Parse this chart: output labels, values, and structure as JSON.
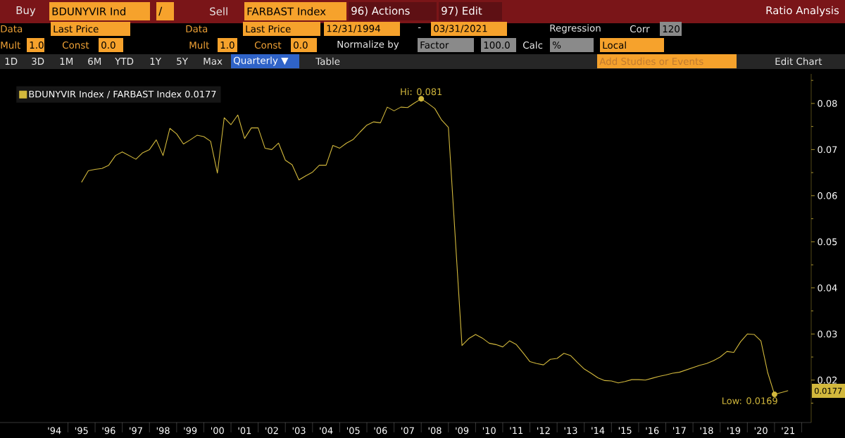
{
  "chart_data": {
    "type": "line",
    "title": "Ratio Analysis",
    "annotations": [
      "Buy",
      "BDUNYVIR Ind",
      "/",
      "Sell",
      "FARBAST Index",
      "96) Actions",
      "97) Edit",
      "Data",
      "Last Price",
      "Data",
      "Last Price",
      "12/31/1994",
      "-",
      "03/31/2021",
      "Regression",
      "Corr",
      "120",
      "Mult",
      "1.0",
      "Const",
      "0.0",
      "Mult",
      "1.0",
      "Const",
      "0.0",
      "Normalize by",
      "Factor",
      "100.0",
      "Calc",
      "%",
      "Local",
      "1D",
      "3D",
      "1M",
      "6M",
      "YTD",
      "1Y",
      "5Y",
      "Max",
      "Quarterly ▼",
      "Table",
      "Add Studies or Events",
      "Edit Chart",
      {
        "text": "Hi: 0.081",
        "x": 2007.5,
        "y": 0.081
      },
      {
        "text": "Low: 0.0169",
        "x": 2020.5,
        "y": 0.0169
      },
      "0.0177"
    ],
    "series": [
      {
        "name": "BDUNYVIR Index / FARBAST Index 0.0177",
        "color": "#d2b83c",
        "x": [
          1995,
          1995.25,
          1995.5,
          1995.75,
          1996,
          1996.25,
          1996.5,
          1996.75,
          1997,
          1997.25,
          1997.5,
          1997.75,
          1998,
          1998.25,
          1998.5,
          1998.75,
          1999,
          1999.25,
          1999.5,
          1999.75,
          2000,
          2000.25,
          2000.5,
          2000.75,
          2001,
          2001.25,
          2001.5,
          2001.75,
          2002,
          2002.25,
          2002.5,
          2002.75,
          2003,
          2003.25,
          2003.5,
          2003.75,
          2004,
          2004.25,
          2004.5,
          2004.75,
          2005,
          2005.25,
          2005.5,
          2005.75,
          2006,
          2006.25,
          2006.5,
          2006.75,
          2007,
          2007.25,
          2007.5,
          2007.75,
          2008,
          2008.25,
          2008.5,
          2009,
          2009.25,
          2009.5,
          2009.75,
          2010,
          2010.25,
          2010.5,
          2010.75,
          2011,
          2011.25,
          2011.5,
          2011.75,
          2012,
          2012.25,
          2012.5,
          2012.75,
          2013,
          2013.25,
          2013.5,
          2013.75,
          2014,
          2014.25,
          2014.5,
          2014.75,
          2015,
          2015.25,
          2015.5,
          2015.75,
          2016,
          2016.25,
          2016.5,
          2016.75,
          2017,
          2017.25,
          2017.5,
          2017.75,
          2018,
          2018.25,
          2018.5,
          2018.75,
          2019,
          2019.25,
          2019.5,
          2019.75,
          2020,
          2020.25,
          2020.5,
          2020.75,
          2021
        ],
        "values": [
          0.0629,
          0.0654,
          0.0657,
          0.0659,
          0.0666,
          0.0687,
          0.0695,
          0.0687,
          0.0679,
          0.0693,
          0.07,
          0.0721,
          0.0687,
          0.0746,
          0.0734,
          0.0712,
          0.0721,
          0.0731,
          0.0728,
          0.0718,
          0.0649,
          0.0769,
          0.0754,
          0.0775,
          0.0724,
          0.0747,
          0.0747,
          0.0703,
          0.07,
          0.0714,
          0.0677,
          0.0667,
          0.0634,
          0.0643,
          0.0651,
          0.0666,
          0.0666,
          0.0709,
          0.0703,
          0.0714,
          0.0722,
          0.0738,
          0.0753,
          0.076,
          0.0758,
          0.0792,
          0.0784,
          0.0792,
          0.0791,
          0.0801,
          0.081,
          0.08,
          0.0789,
          0.0764,
          0.0748,
          0.0275,
          0.029,
          0.0299,
          0.0291,
          0.028,
          0.0277,
          0.0272,
          0.0285,
          0.0277,
          0.0259,
          0.024,
          0.0236,
          0.0233,
          0.0245,
          0.0247,
          0.0258,
          0.0253,
          0.0238,
          0.0224,
          0.0215,
          0.0205,
          0.0199,
          0.0198,
          0.0194,
          0.0197,
          0.0201,
          0.0201,
          0.02,
          0.0204,
          0.0208,
          0.0211,
          0.0215,
          0.0217,
          0.0222,
          0.0227,
          0.0232,
          0.0236,
          0.0242,
          0.025,
          0.0262,
          0.026,
          0.0283,
          0.03,
          0.0299,
          0.0285,
          0.0216,
          0.0169,
          0.0173,
          0.0177
        ]
      }
    ],
    "xlim": [
      1992,
      2021.85
    ],
    "ylim": [
      0.0108,
      0.0864
    ],
    "xticks": [
      {
        "value": 1994,
        "label": "'94"
      },
      {
        "value": 1995,
        "label": "'95"
      },
      {
        "value": 1996,
        "label": "'96"
      },
      {
        "value": 1997,
        "label": "'97"
      },
      {
        "value": 1998,
        "label": "'98"
      },
      {
        "value": 1999,
        "label": "'99"
      },
      {
        "value": 2000,
        "label": "'00"
      },
      {
        "value": 2001,
        "label": "'01"
      },
      {
        "value": 2002,
        "label": "'02"
      },
      {
        "value": 2003,
        "label": "'03"
      },
      {
        "value": 2004,
        "label": "'04"
      },
      {
        "value": 2005,
        "label": "'05"
      },
      {
        "value": 2006,
        "label": "'06"
      },
      {
        "value": 2007,
        "label": "'07"
      },
      {
        "value": 2008,
        "label": "'08"
      },
      {
        "value": 2009,
        "label": "'09"
      },
      {
        "value": 2010,
        "label": "'10"
      },
      {
        "value": 2011,
        "label": "'11"
      },
      {
        "value": 2012,
        "label": "'12"
      },
      {
        "value": 2013,
        "label": "'13"
      },
      {
        "value": 2014,
        "label": "'14"
      },
      {
        "value": 2015,
        "label": "'15"
      },
      {
        "value": 2016,
        "label": "'16"
      },
      {
        "value": 2017,
        "label": "'17"
      },
      {
        "value": 2018,
        "label": "'18"
      },
      {
        "value": 2019,
        "label": "'19"
      },
      {
        "value": 2020,
        "label": "'20"
      },
      {
        "value": 2021,
        "label": "'21"
      },
      {
        "value": 1994.5,
        "label": null
      },
      {
        "value": 1995.5,
        "label": null
      },
      {
        "value": 1996.5,
        "label": null
      },
      {
        "value": 1997.5,
        "label": null
      },
      {
        "value": 1998.5,
        "label": null
      },
      {
        "value": 1999.5,
        "label": null
      },
      {
        "value": 2000.5,
        "label": null
      },
      {
        "value": 2001.5,
        "label": null
      },
      {
        "value": 2002.5,
        "label": null
      },
      {
        "value": 2003.5,
        "label": null
      },
      {
        "value": 2004.5,
        "label": null
      },
      {
        "value": 2005.5,
        "label": null
      },
      {
        "value": 2006.5,
        "label": null
      },
      {
        "value": 2007.5,
        "label": null
      },
      {
        "value": 2008.5,
        "label": null
      },
      {
        "value": 2009.5,
        "label": null
      },
      {
        "value": 2010.5,
        "label": null
      },
      {
        "value": 2011.5,
        "label": null
      },
      {
        "value": 2012.5,
        "label": null
      },
      {
        "value": 2013.5,
        "label": null
      },
      {
        "value": 2014.5,
        "label": null
      },
      {
        "value": 2015.5,
        "label": null
      },
      {
        "value": 2016.5,
        "label": null
      },
      {
        "value": 2017.5,
        "label": null
      },
      {
        "value": 2018.5,
        "label": null
      },
      {
        "value": 2019.5,
        "label": null
      },
      {
        "value": 2020.5,
        "label": null
      },
      {
        "value": 2021.5,
        "label": null
      }
    ],
    "yticks": [
      0.02,
      0.03,
      0.04,
      0.05,
      0.06,
      0.07,
      0.08,
      {
        "value": 0.015,
        "label": null
      },
      {
        "value": 0.025,
        "label": null
      },
      {
        "value": 0.035,
        "label": null
      },
      {
        "value": 0.045,
        "label": null
      },
      {
        "value": 0.055,
        "label": null
      },
      {
        "value": 0.065,
        "label": null
      },
      {
        "value": 0.075,
        "label": null
      },
      {
        "value": 0.085,
        "label": null
      }
    ],
    "grid": false,
    "legend": "top left"
  }
}
